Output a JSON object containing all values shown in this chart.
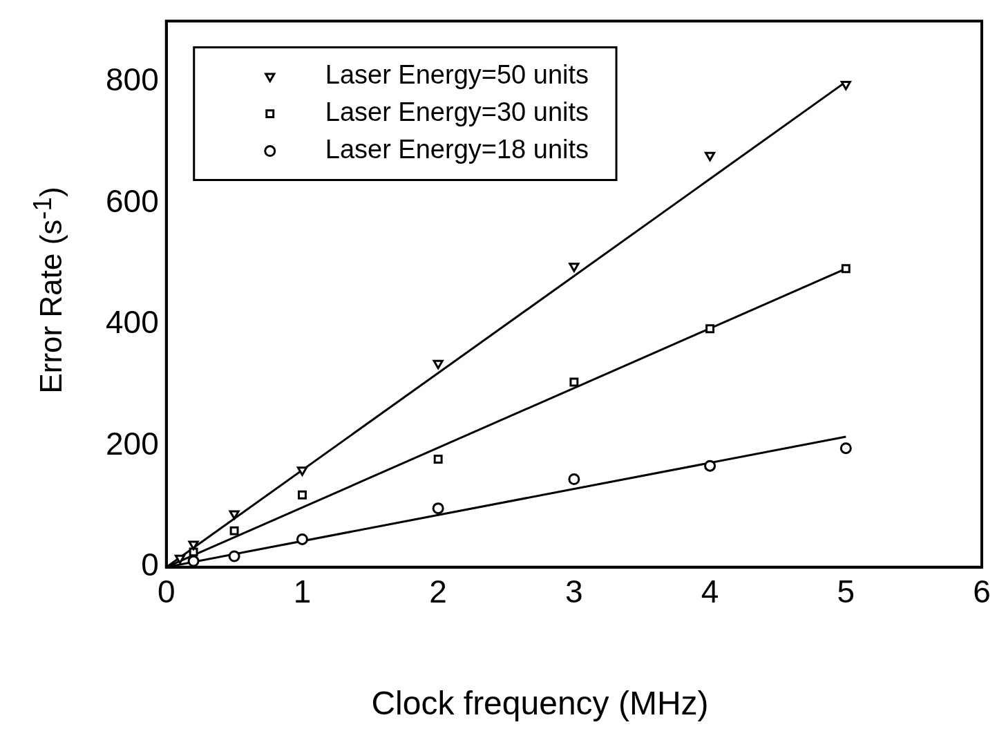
{
  "chart_data": {
    "type": "scatter",
    "xlabel": "Clock frequency (MHz)",
    "ylabel": "Error Rate (s$^{-1}$)",
    "xlim": [
      0,
      6
    ],
    "xticks": [
      0,
      1,
      2,
      3,
      4,
      5,
      6
    ],
    "ylim": [
      0,
      900
    ],
    "yticks": [
      0,
      200,
      400,
      600,
      800
    ],
    "grid": false,
    "legend": "top left",
    "series": [
      {
        "name": "Laser Energy=50 units",
        "color": "#000000",
        "marker": "triangle",
        "x": [
          0.1,
          0.2,
          0.5,
          1,
          2,
          3,
          4,
          5
        ],
        "values": [
          15,
          38,
          88,
          160,
          336,
          496,
          679,
          796
        ]
      },
      {
        "name": "Laser Energy=30 units",
        "color": "#000000",
        "marker": "square",
        "x": [
          0.2,
          0.5,
          1,
          2,
          3,
          4,
          5
        ],
        "values": [
          25,
          60,
          119,
          178,
          305,
          393,
          492
        ]
      },
      {
        "name": "Laser Energy=18 units",
        "color": "#000000",
        "marker": "circle",
        "x": [
          0.2,
          0.5,
          1,
          2,
          3,
          4,
          5
        ],
        "values": [
          10,
          18,
          46,
          97,
          145,
          167,
          196
        ]
      },
      {
        "type": "line",
        "color": "#000000",
        "marker": "none",
        "line_style": "solid",
        "x": [
          0,
          5
        ],
        "values": [
          0,
          800
        ]
      },
      {
        "type": "line",
        "color": "#000000",
        "marker": "none",
        "line_style": "solid",
        "x": [
          0,
          5
        ],
        "values": [
          0,
          492
        ]
      },
      {
        "type": "line",
        "color": "#000000",
        "marker": "none",
        "line_style": "solid",
        "x": [
          0,
          5
        ],
        "values": [
          0,
          215
        ]
      }
    ]
  }
}
